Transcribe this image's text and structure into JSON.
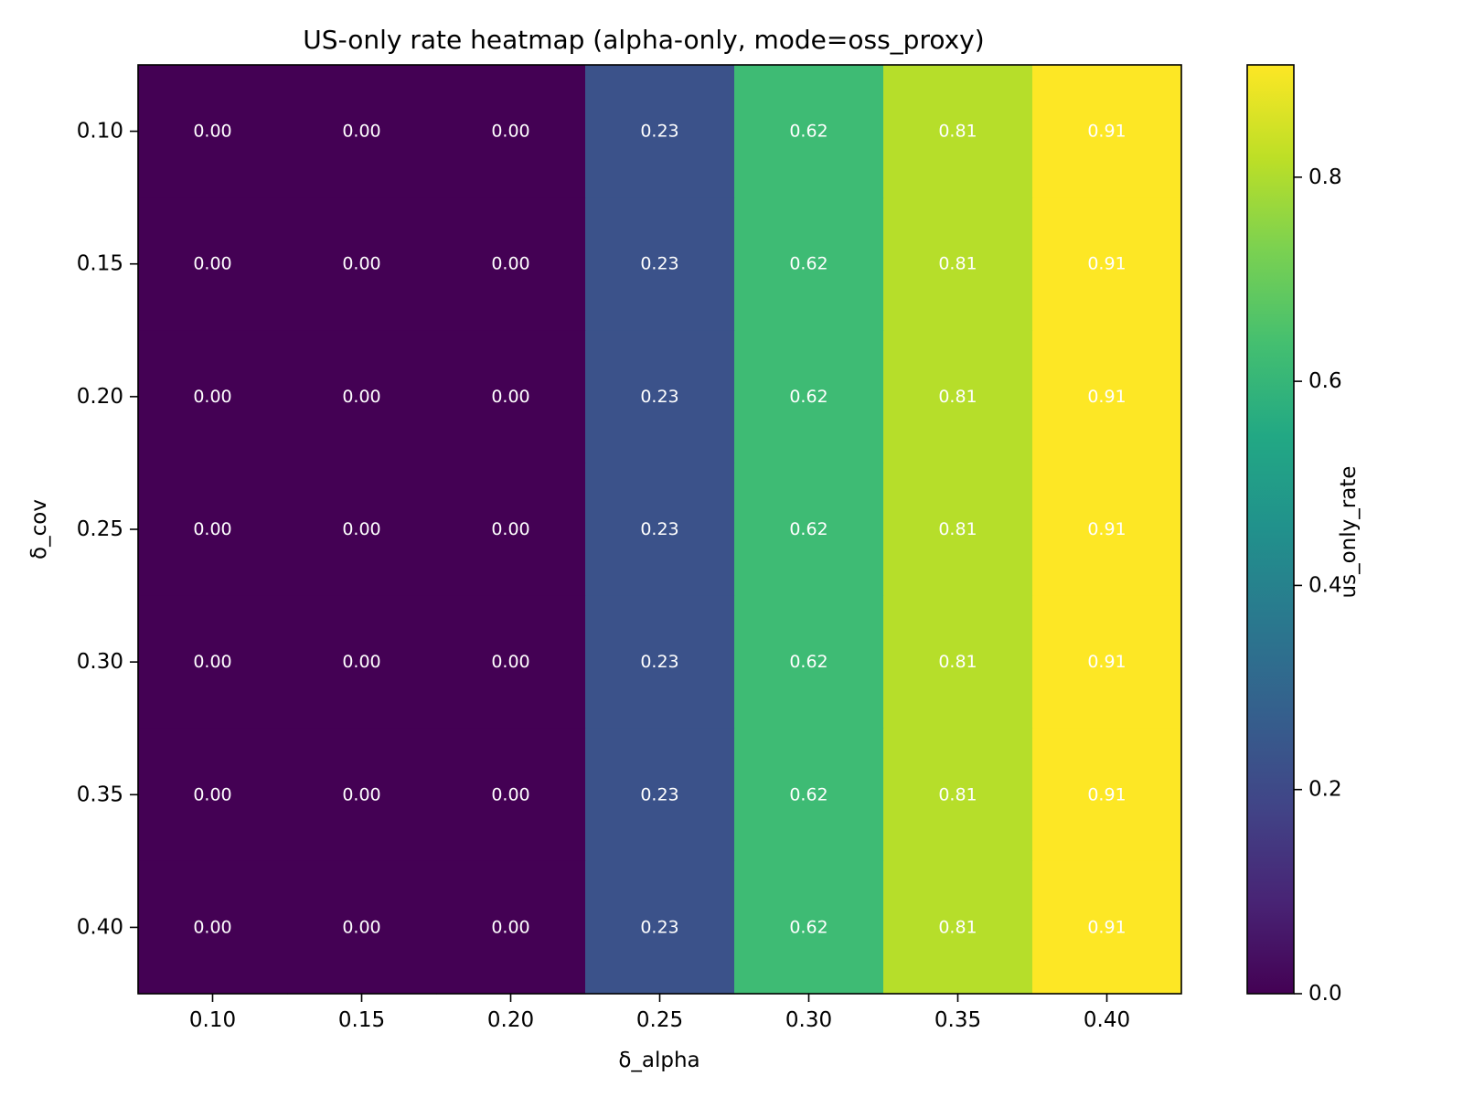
{
  "chart_data": {
    "type": "heatmap",
    "title": "US-only rate heatmap (alpha-only, mode=oss_proxy)",
    "xlabel": "δ_alpha",
    "ylabel": "δ_cov",
    "x_categories": [
      "0.10",
      "0.15",
      "0.20",
      "0.25",
      "0.30",
      "0.35",
      "0.40"
    ],
    "y_categories": [
      "0.10",
      "0.15",
      "0.20",
      "0.25",
      "0.30",
      "0.35",
      "0.40"
    ],
    "values": [
      [
        0.0,
        0.0,
        0.0,
        0.23,
        0.62,
        0.81,
        0.91
      ],
      [
        0.0,
        0.0,
        0.0,
        0.23,
        0.62,
        0.81,
        0.91
      ],
      [
        0.0,
        0.0,
        0.0,
        0.23,
        0.62,
        0.81,
        0.91
      ],
      [
        0.0,
        0.0,
        0.0,
        0.23,
        0.62,
        0.81,
        0.91
      ],
      [
        0.0,
        0.0,
        0.0,
        0.23,
        0.62,
        0.81,
        0.91
      ],
      [
        0.0,
        0.0,
        0.0,
        0.23,
        0.62,
        0.81,
        0.91
      ],
      [
        0.0,
        0.0,
        0.0,
        0.23,
        0.62,
        0.81,
        0.91
      ]
    ],
    "value_format_decimals": 2,
    "colormap": "viridis",
    "colorbar": {
      "label": "us_only_rate",
      "range": [
        0.0,
        0.91
      ],
      "ticks": [
        0.0,
        0.2,
        0.4,
        0.6,
        0.8
      ],
      "tick_labels": [
        "0.0",
        "0.2",
        "0.4",
        "0.6",
        "0.8"
      ]
    },
    "grid": false,
    "legend": "colorbar-right"
  }
}
